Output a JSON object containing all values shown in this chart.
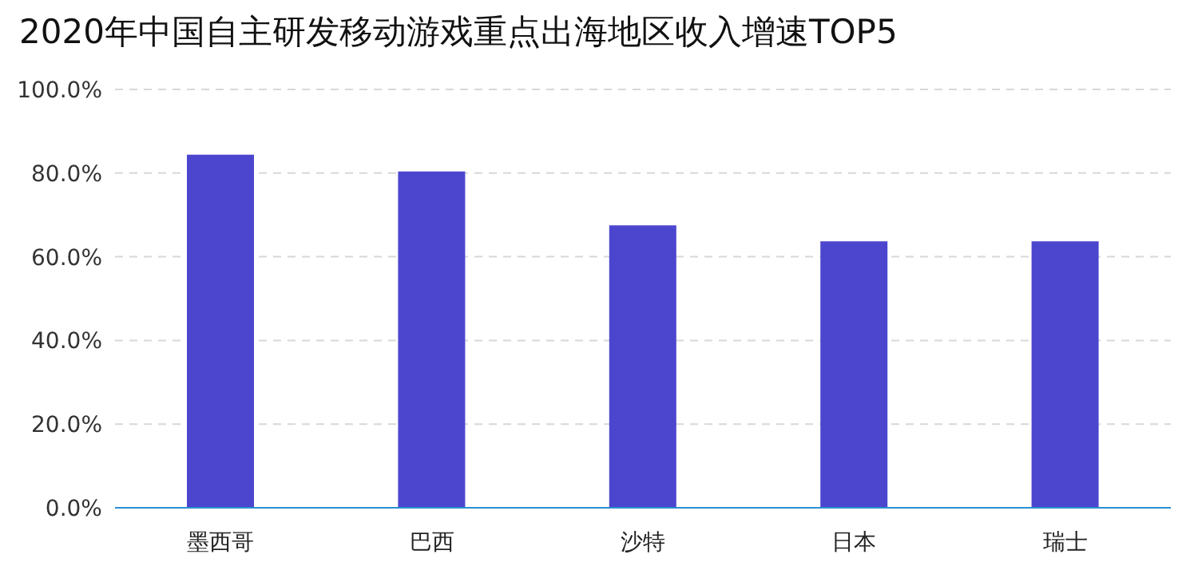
{
  "chart_data": {
    "type": "bar",
    "title": "2020年中国自主研发移动游戏重点出海地区收入增速TOP5",
    "categories": [
      "墨西哥",
      "巴西",
      "沙特",
      "日本",
      "瑞士"
    ],
    "values": [
      84.4,
      80.4,
      67.5,
      63.7,
      63.7
    ],
    "color": "#4c46cf",
    "ylim": [
      0,
      100
    ],
    "yticks": [
      {
        "value": 0,
        "label": "0.0%"
      },
      {
        "value": 20,
        "label": "20.0%"
      },
      {
        "value": 40,
        "label": "40.0%"
      },
      {
        "value": 60,
        "label": "60.0%"
      },
      {
        "value": 80,
        "label": "80.0%"
      },
      {
        "value": 100,
        "label": "100.0%"
      }
    ],
    "grid": "y"
  }
}
